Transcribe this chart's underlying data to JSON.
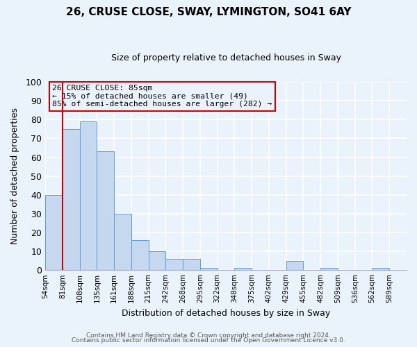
{
  "title": "26, CRUSE CLOSE, SWAY, LYMINGTON, SO41 6AY",
  "subtitle": "Size of property relative to detached houses in Sway",
  "xlabel": "Distribution of detached houses by size in Sway",
  "ylabel": "Number of detached properties",
  "bin_labels": [
    "54sqm",
    "81sqm",
    "108sqm",
    "135sqm",
    "161sqm",
    "188sqm",
    "215sqm",
    "242sqm",
    "268sqm",
    "295sqm",
    "322sqm",
    "348sqm",
    "375sqm",
    "402sqm",
    "429sqm",
    "455sqm",
    "482sqm",
    "509sqm",
    "536sqm",
    "562sqm",
    "589sqm"
  ],
  "bar_values": [
    40,
    75,
    79,
    63,
    30,
    16,
    10,
    6,
    6,
    1,
    0,
    1,
    0,
    0,
    5,
    0,
    1,
    0,
    0,
    1,
    0
  ],
  "bar_color": "#c5d8f0",
  "bar_edge_color": "#5a9fd4",
  "vline_x": 1,
  "vline_color": "#cc0000",
  "annotation_title": "26 CRUSE CLOSE: 85sqm",
  "annotation_line1": "← 15% of detached houses are smaller (49)",
  "annotation_line2": "85% of semi-detached houses are larger (282) →",
  "annotation_box_color": "#cc0000",
  "ylim": [
    0,
    100
  ],
  "yticks": [
    0,
    10,
    20,
    30,
    40,
    50,
    60,
    70,
    80,
    90,
    100
  ],
  "footer1": "Contains HM Land Registry data © Crown copyright and database right 2024.",
  "footer2": "Contains public sector information licensed under the Open Government Licence v3.0.",
  "background_color": "#eaf2fb",
  "grid_color": "#ffffff"
}
